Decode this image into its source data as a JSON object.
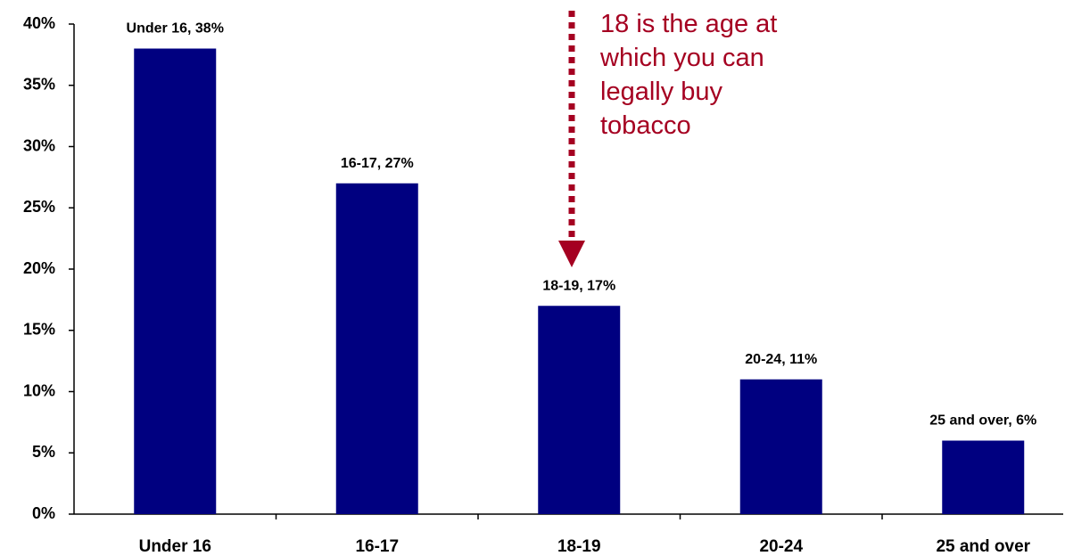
{
  "chart_data": {
    "type": "bar",
    "categories": [
      "Under 16",
      "16-17",
      "18-19",
      "20-24",
      "25 and over"
    ],
    "values": [
      38,
      27,
      17,
      11,
      6
    ],
    "value_labels": [
      "Under 16, 38%",
      "16-17, 27%",
      "18-19, 17%",
      "20-24, 11%",
      "25 and over, 6%"
    ],
    "color": "#000080",
    "ylim": [
      0,
      40
    ],
    "yticks": [
      {
        "value": 0,
        "label": "0%"
      },
      {
        "value": 5,
        "label": "5%"
      },
      {
        "value": 10,
        "label": "10%"
      },
      {
        "value": 15,
        "label": "15%"
      },
      {
        "value": 20,
        "label": "20%"
      },
      {
        "value": 25,
        "label": "25%"
      },
      {
        "value": 30,
        "label": "30%"
      },
      {
        "value": 35,
        "label": "35%"
      },
      {
        "value": 40,
        "label": "40%"
      }
    ],
    "annotation": "18 is the age at which you can legally buy tobacco",
    "annotation_color": "#a50021"
  }
}
